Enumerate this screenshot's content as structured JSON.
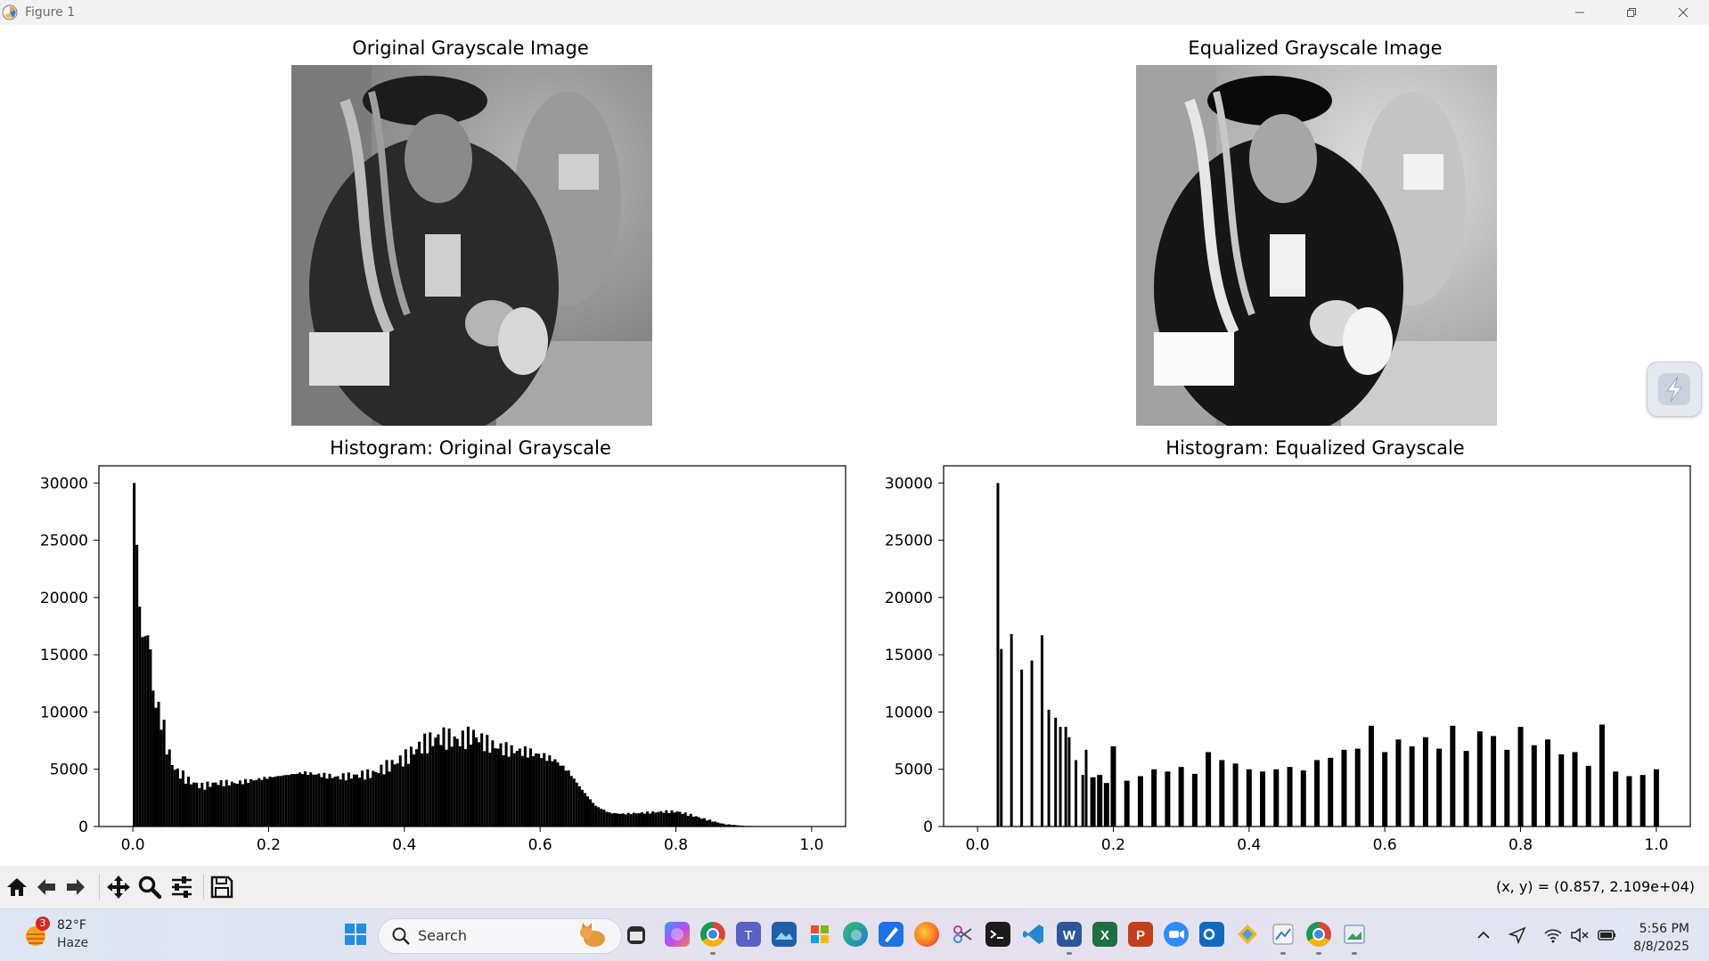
{
  "window": {
    "title": "Figure 1"
  },
  "figure": {
    "axes_titles": {
      "original_image": "Original Grayscale Image",
      "equalized_image": "Equalized Grayscale Image",
      "hist_original": "Histogram: Original Grayscale",
      "hist_equalized": "Histogram: Equalized Grayscale"
    }
  },
  "chart_data": [
    {
      "type": "bar",
      "title": "Histogram: Original Grayscale",
      "xlabel": "",
      "ylabel": "",
      "xlim": [
        -0.05,
        1.05
      ],
      "ylim": [
        0,
        31500
      ],
      "xticks": [
        "0.0",
        "0.2",
        "0.4",
        "0.6",
        "0.8",
        "1.0"
      ],
      "yticks": [
        "0",
        "5000",
        "10000",
        "15000",
        "20000",
        "25000",
        "30000"
      ],
      "bin_width": 0.004,
      "x": [
        0,
        0.01,
        0.02,
        0.03,
        0.04,
        0.05,
        0.06,
        0.07,
        0.08,
        0.1,
        0.12,
        0.15,
        0.2,
        0.25,
        0.3,
        0.35,
        0.4,
        0.42,
        0.45,
        0.48,
        0.5,
        0.52,
        0.55,
        0.58,
        0.6,
        0.62,
        0.64,
        0.66,
        0.68,
        0.7,
        0.72,
        0.75,
        0.78,
        0.8,
        0.82,
        0.85,
        0.87,
        0.9,
        1.0
      ],
      "values": [
        30000,
        16500,
        16700,
        11000,
        9500,
        6500,
        5000,
        4500,
        4000,
        3500,
        3800,
        3800,
        4300,
        4700,
        4300,
        4600,
        6000,
        7000,
        7800,
        7500,
        8000,
        7200,
        6700,
        6500,
        6200,
        5800,
        4800,
        3200,
        1800,
        1200,
        1100,
        1200,
        1300,
        1300,
        1000,
        500,
        200,
        50,
        0
      ]
    },
    {
      "type": "bar",
      "title": "Histogram: Equalized Grayscale",
      "xlabel": "",
      "ylabel": "",
      "xlim": [
        -0.05,
        1.05
      ],
      "ylim": [
        0,
        31500
      ],
      "xticks": [
        "0.0",
        "0.2",
        "0.4",
        "0.6",
        "0.8",
        "1.0"
      ],
      "yticks": [
        "0",
        "5000",
        "10000",
        "15000",
        "20000",
        "25000",
        "30000"
      ],
      "x": [
        0.03,
        0.035,
        0.05,
        0.065,
        0.08,
        0.095,
        0.105,
        0.115,
        0.122,
        0.13,
        0.135,
        0.145,
        0.155,
        0.16,
        0.17,
        0.18,
        0.19,
        0.2,
        0.22,
        0.24,
        0.26,
        0.28,
        0.3,
        0.32,
        0.34,
        0.36,
        0.38,
        0.4,
        0.42,
        0.44,
        0.46,
        0.48,
        0.5,
        0.52,
        0.54,
        0.56,
        0.58,
        0.6,
        0.62,
        0.64,
        0.66,
        0.68,
        0.7,
        0.72,
        0.74,
        0.76,
        0.78,
        0.8,
        0.82,
        0.84,
        0.86,
        0.88,
        0.9,
        0.92,
        0.94,
        0.96,
        0.98,
        1.0
      ],
      "values": [
        30000,
        15500,
        16800,
        13700,
        14500,
        16700,
        10200,
        9500,
        8700,
        8700,
        7800,
        5800,
        4500,
        6700,
        4300,
        4500,
        3800,
        7000,
        4000,
        4400,
        5000,
        4800,
        5200,
        4600,
        6500,
        5800,
        5500,
        5000,
        4800,
        5000,
        5200,
        4900,
        5800,
        6000,
        6700,
        6800,
        8800,
        6500,
        7600,
        7000,
        7800,
        6800,
        8800,
        6600,
        8300,
        7900,
        6700,
        8700,
        7100,
        7600,
        6300,
        6500,
        5300,
        8900,
        4800,
        4400,
        4500,
        5000
      ]
    }
  ],
  "toolbar": {
    "coords_text": "(x, y) = (0.857, 2.109e+04)"
  },
  "taskbar": {
    "weather_badge": "3",
    "temperature": "82°F",
    "condition": "Haze",
    "search_label": "Search",
    "time": "5:56 PM",
    "date": "8/8/2025"
  }
}
